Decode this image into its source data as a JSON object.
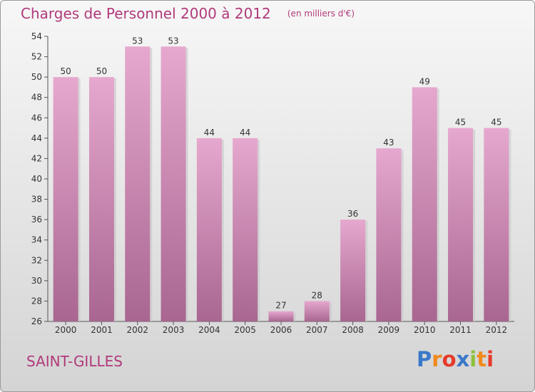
{
  "title": "Charges de Personnel 2000 à 2012",
  "subtitle": "(en milliers d'€)",
  "town": "SAINT-GILLES",
  "logo": {
    "letters": [
      "P",
      "r",
      "o",
      "x",
      "i",
      "t",
      "i"
    ],
    "colors": [
      "#3a78c9",
      "#f08a1c",
      "#e63a2a",
      "#3a78c9",
      "#8fc03a",
      "#f08a1c",
      "#e63a2a"
    ]
  },
  "colors": {
    "bar_top": "#e6a8cf",
    "bar_bottom": "#a86690",
    "text_accent": "#b03a7a"
  },
  "chart_data": {
    "type": "bar",
    "categories": [
      "2000",
      "2001",
      "2002",
      "2003",
      "2004",
      "2005",
      "2006",
      "2007",
      "2008",
      "2009",
      "2010",
      "2011",
      "2012"
    ],
    "values": [
      50,
      50,
      53,
      53,
      44,
      44,
      27,
      28,
      36,
      43,
      49,
      45,
      45
    ],
    "title": "Charges de Personnel 2000 à 2012",
    "subtitle": "(en milliers d'€)",
    "ylim": [
      26,
      54
    ],
    "yticks": [
      26,
      28,
      30,
      32,
      34,
      36,
      38,
      40,
      42,
      44,
      46,
      48,
      50,
      52,
      54
    ],
    "grid": false,
    "legend": "none"
  }
}
